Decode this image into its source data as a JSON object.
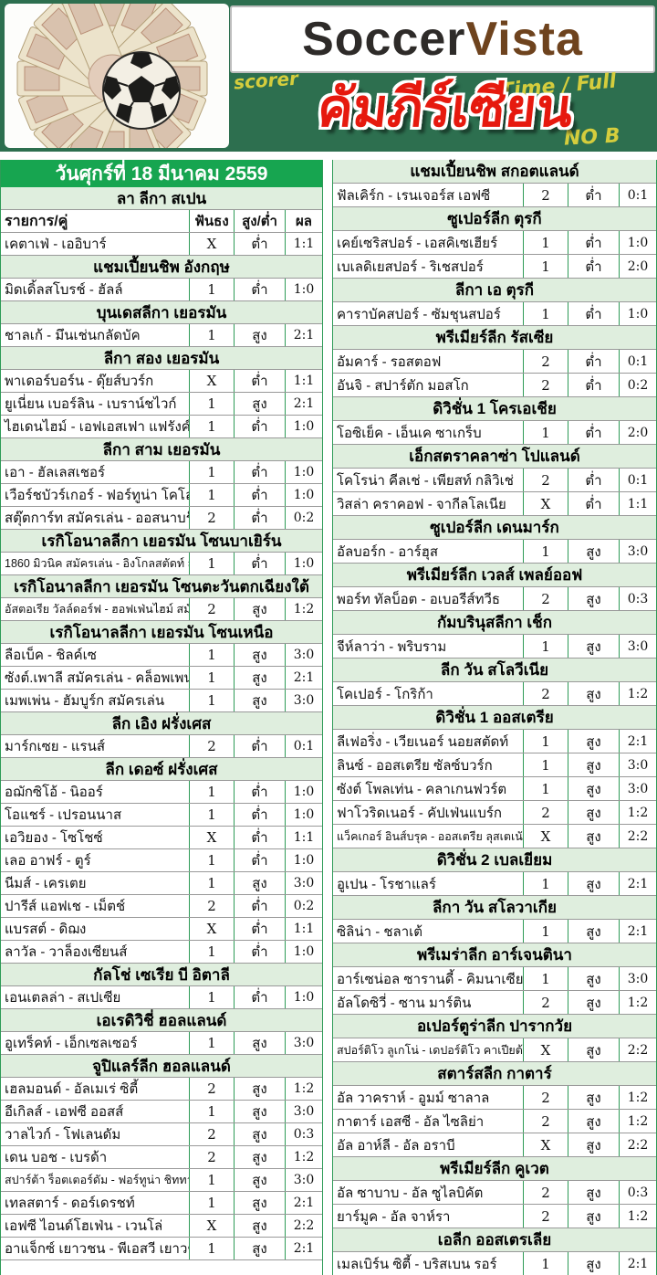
{
  "header": {
    "logo_soccer": "Soccer",
    "logo_vista": "Vista",
    "title_thai": "คัมภีร์เซียน",
    "handwriting": [
      "scorer",
      "Time / Full",
      "NO B"
    ],
    "icons": [
      "money-fan-image",
      "soccer-ball-icon"
    ]
  },
  "colors": {
    "banner_green": "#2d6f4f",
    "date_bar_green": "#17a550",
    "section_light_green": "#dfeede",
    "grid_green": "#2e9b57",
    "grid_gray": "#999999",
    "title_red": "#e6190e",
    "handwriting_yellow": "#e8d83c",
    "vista_brown": "#6e431e"
  },
  "date_title": "วันศุกร์ที่ 18 มีนาคม 2559",
  "table": {
    "columns": [
      "รายการ/คู่",
      "ฟันธง",
      "สูง/ต่ำ",
      "ผล"
    ]
  },
  "left_sections": [
    {
      "league": "ลา ลีกา สเปน",
      "columns_header": true,
      "rows": [
        {
          "match": "เคตาเฟ่ - เออิบาร์",
          "tip": "X",
          "ou": "ต่ำ",
          "result": "1:1"
        }
      ]
    },
    {
      "league": "แชมเปี้ยนชิพ อังกฤษ",
      "rows": [
        {
          "match": "มิดเดิ้ลสโบรช์ - ฮัลล์",
          "tip": "1",
          "ou": "ต่ำ",
          "result": "1:0"
        }
      ]
    },
    {
      "league": "บุนเดสลีกา เยอรมัน",
      "rows": [
        {
          "match": "ชาลเก้ - มึนเช่นกลัดบัค",
          "tip": "1",
          "ou": "สูง",
          "result": "2:1"
        }
      ]
    },
    {
      "league": "ลีกา สอง เยอรมัน",
      "rows": [
        {
          "match": "พาเดอร์บอร์น - ดุ๊ยส์บวร์ก",
          "tip": "X",
          "ou": "ต่ำ",
          "result": "1:1"
        },
        {
          "match": "ยูเนี่ยน เบอร์ลิน - เบราน์ชไวก์",
          "tip": "1",
          "ou": "สูง",
          "result": "2:1"
        },
        {
          "match": "ไฮเดนไฮม์ - เอฟเอสเฟา แฟรังค์เฟิร์ต",
          "tip": "1",
          "ou": "ต่ำ",
          "result": "1:0"
        }
      ]
    },
    {
      "league": "ลีกา สาม เยอรมัน",
      "rows": [
        {
          "match": "เอา - ฮัลเลสเชอร์",
          "tip": "1",
          "ou": "ต่ำ",
          "result": "1:0"
        },
        {
          "match": "เวือร์ชบัวร์เกอร์ - ฟอร์ทูน่า โคโลญจน์",
          "tip": "1",
          "ou": "ต่ำ",
          "result": "1:0"
        },
        {
          "match": "สตุ๊ตการ์ท สมัครเล่น - ออสนาบรุ๊ค",
          "tip": "2",
          "ou": "ต่ำ",
          "result": "0:2"
        }
      ]
    },
    {
      "league": "เรกิโอนาลลีกา เยอรมัน โซนบาเยิร์น",
      "rows": [
        {
          "match": "1860 มิวนิค สมัครเล่น - อิงโกลสตัดท์ สมัครเล่น",
          "tip": "1",
          "ou": "ต่ำ",
          "result": "1:0",
          "small": true
        }
      ]
    },
    {
      "league": "เรกิโอนาลลีกา เยอรมัน โซนตะวันตกเฉียงใต้",
      "rows": [
        {
          "match": "อัสตอเรีย วัลล์ดอร์ฟ - ฮอฟเฟ่นไฮม์ สมัครเล่น",
          "tip": "2",
          "ou": "สูง",
          "result": "1:2",
          "small": true
        }
      ]
    },
    {
      "league": "เรกิโอนาลลีกา เยอรมัน โซนเหนือ",
      "rows": [
        {
          "match": "ลือเบ็ค - ชิลค์เซ",
          "tip": "1",
          "ou": "สูง",
          "result": "3:0"
        },
        {
          "match": "ซังต์.เพาลี สมัครเล่น - คล็อพเพนบวร์ก",
          "tip": "1",
          "ou": "สูง",
          "result": "2:1"
        },
        {
          "match": "เมพเพ่น - ฮัมบูร์ก สมัครเล่น",
          "tip": "1",
          "ou": "สูง",
          "result": "3:0"
        }
      ]
    },
    {
      "league": "ลีก เอิง ฝรั่งเศส",
      "rows": [
        {
          "match": "มาร์กเซย - แรนส์",
          "tip": "2",
          "ou": "ต่ำ",
          "result": "0:1"
        }
      ]
    },
    {
      "league": "ลีก เดอซ์ ฝรั่งเศส",
      "rows": [
        {
          "match": "อฌักซิโอ้ - นิออร์",
          "tip": "1",
          "ou": "ต่ำ",
          "result": "1:0"
        },
        {
          "match": "โอแชร์ - เปรอนนาส",
          "tip": "1",
          "ou": "ต่ำ",
          "result": "1:0"
        },
        {
          "match": "เอวิยอง - โซโชซ์",
          "tip": "X",
          "ou": "ต่ำ",
          "result": "1:1"
        },
        {
          "match": "เลอ อาฟร์ - ตูร์",
          "tip": "1",
          "ou": "ต่ำ",
          "result": "1:0"
        },
        {
          "match": "นีมส์ - เครเตย",
          "tip": "1",
          "ou": "สูง",
          "result": "3:0"
        },
        {
          "match": "ปารีส์ แอฟเช - เม็ตช์",
          "tip": "2",
          "ou": "ต่ำ",
          "result": "0:2"
        },
        {
          "match": "แบรสต์ - ดิฌง",
          "tip": "X",
          "ou": "ต่ำ",
          "result": "1:1"
        },
        {
          "match": "ลาวัล - วาล็องเซียนส์",
          "tip": "1",
          "ou": "ต่ำ",
          "result": "1:0"
        }
      ]
    },
    {
      "league": "กัลโช่ เซเรีย บี อิตาลี",
      "rows": [
        {
          "match": "เอนเตลล่า - สเปเซีย",
          "tip": "1",
          "ou": "ต่ำ",
          "result": "1:0"
        }
      ]
    },
    {
      "league": "เอเรดิวิชี่ ฮอลแลนด์",
      "rows": [
        {
          "match": "อูเทร็คท์ - เอ็กเซลเซอร์",
          "tip": "1",
          "ou": "สูง",
          "result": "3:0"
        }
      ]
    },
    {
      "league": "จูปิแลร์ลีก ฮอลแลนด์",
      "rows": [
        {
          "match": "เฮลมอนด์ - อัลเมเร่ ซิตี้",
          "tip": "2",
          "ou": "สูง",
          "result": "1:2"
        },
        {
          "match": "อีเกิลส์ - เอฟซี ออสส์",
          "tip": "1",
          "ou": "สูง",
          "result": "3:0"
        },
        {
          "match": "วาลไวก์ - โฟเลนดัม",
          "tip": "2",
          "ou": "สูง",
          "result": "0:3"
        },
        {
          "match": "เดน บอช - เบรด้า",
          "tip": "2",
          "ou": "สูง",
          "result": "1:2"
        },
        {
          "match": "สปาร์ต้า ร็อตเตอร์ดัม - ฟอร์ทูน่า ชิททาร์ด",
          "tip": "1",
          "ou": "สูง",
          "result": "3:0",
          "small": true
        },
        {
          "match": "เทลสตาร์ - ดอร์เดรชท์",
          "tip": "1",
          "ou": "สูง",
          "result": "2:1"
        },
        {
          "match": "เอฟซี ไอนด์โฮเฟ่น - เวนโล่",
          "tip": "X",
          "ou": "สูง",
          "result": "2:2"
        },
        {
          "match": "อาแจ็กซ์ เยาวชน - พีเอสวี เยาวชน",
          "tip": "1",
          "ou": "สูง",
          "result": "2:1"
        }
      ]
    }
  ],
  "right_sections": [
    {
      "league": "แชมเปี้ยนชิพ สกอตแลนด์",
      "rows": [
        {
          "match": "ฟัลเคิร์ก - เรนเจอร์ส เอฟซี",
          "tip": "2",
          "ou": "ต่ำ",
          "result": "0:1"
        }
      ]
    },
    {
      "league": "ซูเปอร์ลีก ตุรกี",
      "rows": [
        {
          "match": "เคย์เซริสปอร์ - เอสคิเซเฮียร์",
          "tip": "1",
          "ou": "ต่ำ",
          "result": "1:0"
        },
        {
          "match": "เบเลดิเยสปอร์ - ริเชสปอร์",
          "tip": "1",
          "ou": "ต่ำ",
          "result": "2:0"
        }
      ]
    },
    {
      "league": "ลีกา เอ ตุรกี",
      "rows": [
        {
          "match": "คาราบัคสปอร์ - ซัมชุนสปอร์",
          "tip": "1",
          "ou": "ต่ำ",
          "result": "1:0"
        }
      ]
    },
    {
      "league": "พรีเมียร์ลีก รัสเซีย",
      "rows": [
        {
          "match": "อัมคาร์ - รอสตอฟ",
          "tip": "2",
          "ou": "ต่ำ",
          "result": "0:1"
        },
        {
          "match": "อันจิ - สปาร์ตัก มอสโก",
          "tip": "2",
          "ou": "ต่ำ",
          "result": "0:2"
        }
      ]
    },
    {
      "league": "ดิวิชั่น 1 โครเอเชีย",
      "rows": [
        {
          "match": "โอซิเย็ค - เอ็นเค ซาเกร็บ",
          "tip": "1",
          "ou": "ต่ำ",
          "result": "2:0"
        }
      ]
    },
    {
      "league": "เอ็กสตราคลาซ่า โปแลนด์",
      "rows": [
        {
          "match": "โคโรน่า คีลเช่ - เพียสท์ กลิวิเช่",
          "tip": "2",
          "ou": "ต่ำ",
          "result": "0:1"
        },
        {
          "match": "วิสล่า คราคอฟ - จากีลโลเนีย",
          "tip": "X",
          "ou": "ต่ำ",
          "result": "1:1"
        }
      ]
    },
    {
      "league": "ซูเปอร์ลีก เดนมาร์ก",
      "rows": [
        {
          "match": "อัลบอร์ก - อาร์ฮุส",
          "tip": "1",
          "ou": "สูง",
          "result": "3:0"
        }
      ]
    },
    {
      "league": "พรีเมียร์ลีก เวลส์ เพลย์ออฟ",
      "rows": [
        {
          "match": "พอร์ท ทัลบ็อต - อเบอรีส์ทวีธ",
          "tip": "2",
          "ou": "สูง",
          "result": "0:3"
        }
      ]
    },
    {
      "league": "กัมบรินุสลีกา เช็ก",
      "rows": [
        {
          "match": "จีห์ลาว่า - พริบราม",
          "tip": "1",
          "ou": "สูง",
          "result": "3:0"
        }
      ]
    },
    {
      "league": "ลีก วัน สโลวีเนีย",
      "rows": [
        {
          "match": "โคเปอร์ - โกริก้า",
          "tip": "2",
          "ou": "สูง",
          "result": "1:2"
        }
      ]
    },
    {
      "league": "ดิวิชั่น 1 ออสเตรีย",
      "rows": [
        {
          "match": "ลีเฟอริ่ง - เวียเนอร์ นอยสตัดท์",
          "tip": "1",
          "ou": "สูง",
          "result": "2:1"
        },
        {
          "match": "ลินซ์ - ออสเตรีย ซัลซ์บวร์ก",
          "tip": "1",
          "ou": "สูง",
          "result": "3:0"
        },
        {
          "match": "ซังต์ โพลเท่น - คลาเกนฟวร์ต",
          "tip": "1",
          "ou": "สูง",
          "result": "3:0"
        },
        {
          "match": "ฟาโวริดเนอร์ - คัปเฟ่นแบร์ก",
          "tip": "2",
          "ou": "สูง",
          "result": "1:2"
        },
        {
          "match": "แว็คเกอร์ อินส์บรุค - ออสเตรีย ลุสเตเนัว",
          "tip": "X",
          "ou": "สูง",
          "result": "2:2",
          "small": true
        }
      ]
    },
    {
      "league": "ดิวิชั่น 2 เบลเยียม",
      "rows": [
        {
          "match": "อูเปน - โรชาแลร์",
          "tip": "1",
          "ou": "สูง",
          "result": "2:1"
        }
      ]
    },
    {
      "league": "ลีกา วัน สโลวาเกีย",
      "rows": [
        {
          "match": "ซิลิน่า - ชลาเต้",
          "tip": "1",
          "ou": "สูง",
          "result": "2:1"
        }
      ]
    },
    {
      "league": "พรีเมร่าลีก อาร์เจนตินา",
      "rows": [
        {
          "match": "อาร์เซน่อล ซารานดี้ - คิมนาเซีย",
          "tip": "1",
          "ou": "สูง",
          "result": "3:0"
        },
        {
          "match": "อัลโดซิวี่ - ซาน มาร์ติน",
          "tip": "2",
          "ou": "สูง",
          "result": "1:2"
        }
      ]
    },
    {
      "league": "อเปอร์ตูร่าลีก ปารากวัย",
      "rows": [
        {
          "match": "สปอร์ติโว ลูเกโน่ - เดปอร์ติโว คาเปียต้า",
          "tip": "X",
          "ou": "สูง",
          "result": "2:2",
          "small": true
        }
      ]
    },
    {
      "league": "สตาร์สลีก กาตาร์",
      "rows": [
        {
          "match": "อัล วาคราห์ - อูมม์ ซาลาล",
          "tip": "2",
          "ou": "สูง",
          "result": "1:2"
        },
        {
          "match": "กาตาร์ เอสซี - อัล ไซลิย่า",
          "tip": "2",
          "ou": "สูง",
          "result": "1:2"
        },
        {
          "match": "อัล อาห์ลี - อัล อราบี",
          "tip": "X",
          "ou": "สูง",
          "result": "2:2"
        }
      ]
    },
    {
      "league": "พรีเมียร์ลีก คูเวต",
      "rows": [
        {
          "match": "อัล ซาบาบ - อัล ซูไลบิคัต",
          "tip": "2",
          "ou": "สูง",
          "result": "0:3"
        },
        {
          "match": "ยาร์มูค - อัล จาห์รา",
          "tip": "2",
          "ou": "สูง",
          "result": "1:2"
        }
      ]
    },
    {
      "league": "เอลีก ออสเตรเลีย",
      "rows": [
        {
          "match": "เมลเบิร์น ซิตี้ - บริสเบน รอร์",
          "tip": "1",
          "ou": "สูง",
          "result": "2:1"
        }
      ]
    }
  ]
}
